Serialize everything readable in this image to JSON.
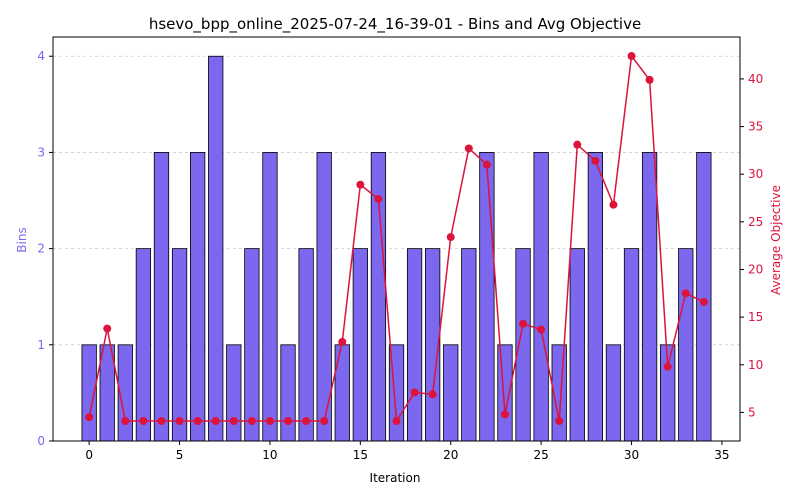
{
  "chart_data": {
    "type": "bar",
    "title": "hsevo_bpp_online_2025-07-24_16-39-01 - Bins and Avg Objective",
    "xlabel": "Iteration",
    "ylabel": "Bins",
    "y2label": "Average Objective",
    "x": [
      0,
      1,
      2,
      3,
      4,
      5,
      6,
      7,
      8,
      9,
      10,
      11,
      12,
      13,
      14,
      15,
      16,
      17,
      18,
      19,
      20,
      21,
      22,
      23,
      24,
      25,
      26,
      27,
      28,
      29,
      30,
      31,
      32,
      33,
      34
    ],
    "xlim": [
      -2,
      36
    ],
    "xticks": [
      0,
      5,
      10,
      15,
      20,
      25,
      30,
      35
    ],
    "ylim": [
      0,
      4.2
    ],
    "yticks": [
      0,
      1,
      2,
      3,
      4
    ],
    "y2lim": [
      2.0,
      44.4
    ],
    "y2ticks": [
      5,
      10,
      15,
      20,
      25,
      30,
      35,
      40
    ],
    "grid": "horizontal dashed",
    "series": [
      {
        "kind": "bar",
        "axis": "left",
        "color": "#7b68ee",
        "values": [
          1,
          1,
          1,
          2,
          3,
          2,
          3,
          4,
          1,
          2,
          3,
          1,
          2,
          3,
          1,
          2,
          3,
          1,
          2,
          2,
          1,
          2,
          3,
          1,
          2,
          3,
          1,
          2,
          3,
          1,
          2,
          3,
          1,
          2,
          3
        ]
      },
      {
        "kind": "line",
        "axis": "right",
        "color": "#dc143c",
        "values": [
          4.5,
          13.8,
          4.1,
          4.1,
          4.1,
          4.1,
          4.1,
          4.1,
          4.1,
          4.1,
          4.1,
          4.1,
          4.1,
          4.1,
          12.4,
          28.9,
          27.4,
          4.1,
          7.1,
          6.9,
          23.4,
          32.7,
          31.0,
          4.8,
          14.3,
          13.7,
          4.1,
          33.1,
          31.4,
          26.8,
          42.4,
          39.9,
          9.8,
          17.5,
          16.6
        ]
      }
    ]
  }
}
